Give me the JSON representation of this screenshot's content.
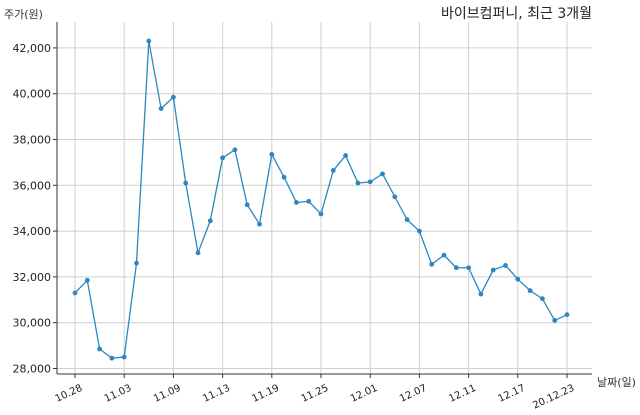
{
  "chart_data": {
    "type": "line",
    "title": "바이브컴퍼니, 최근 3개월",
    "ylabel": "주가(원)",
    "xlabel": "날짜(일)",
    "ylim": [
      28000,
      43000
    ],
    "yticks": [
      "28,000",
      "30,000",
      "32,000",
      "34,000",
      "36,000",
      "38,000",
      "40,000",
      "42,000"
    ],
    "grid": true,
    "color": "#2e86c1",
    "x": [
      "10.28",
      "10.29",
      "10.30",
      "11.02",
      "11.03",
      "11.04",
      "11.05",
      "11.06",
      "11.09",
      "11.10",
      "11.11",
      "11.12",
      "11.13",
      "11.16",
      "11.17",
      "11.18",
      "11.19",
      "11.20",
      "11.23",
      "11.24",
      "11.25",
      "11.26",
      "11.27",
      "11.30",
      "12.01",
      "12.02",
      "12.03",
      "12.04",
      "12.07",
      "12.08",
      "12.09",
      "12.10",
      "12.11",
      "12.14",
      "12.15",
      "12.16",
      "12.17",
      "12.18",
      "12.21",
      "12.22",
      "20.12.23"
    ],
    "values": [
      31300,
      31850,
      28850,
      28450,
      28500,
      32600,
      42300,
      39350,
      39850,
      36100,
      33050,
      34450,
      37200,
      37550,
      35150,
      34300,
      37350,
      36350,
      35250,
      35300,
      34750,
      36650,
      37300,
      36100,
      36150,
      36500,
      35500,
      34500,
      34000,
      32550,
      32950,
      32400,
      32400,
      31250,
      32300,
      32500,
      31900,
      31400,
      31050,
      30100,
      30350
    ],
    "xtick_labels": [
      "10.28",
      "11.03",
      "11.09",
      "11.13",
      "11.19",
      "11.25",
      "12.01",
      "12.07",
      "12.11",
      "12.17",
      "20.12.23"
    ],
    "xtick_indices": [
      0,
      4,
      8,
      12,
      16,
      20,
      24,
      28,
      32,
      36,
      40
    ]
  }
}
